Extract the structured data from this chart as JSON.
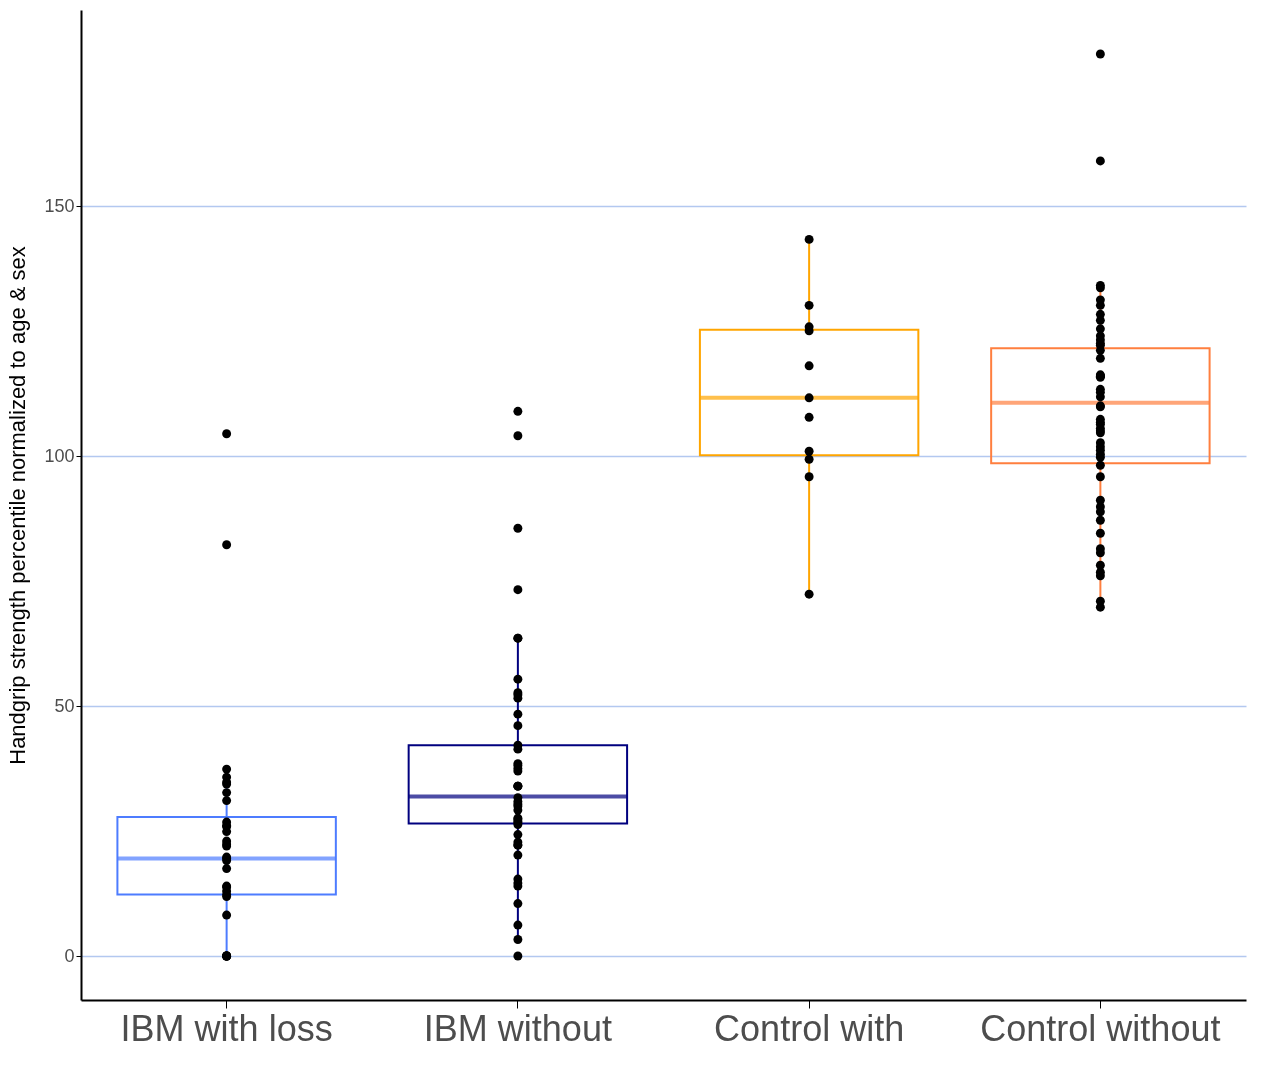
{
  "chart_data": {
    "type": "box",
    "ylabel": "Handgrip strength percentile normalized to age & sex",
    "categories": [
      "IBM with loss",
      "IBM without",
      "Control with",
      "Control without"
    ],
    "colors": [
      "#4d7cff",
      "#00007f",
      "#ffa500",
      "#ff7f3f"
    ],
    "boxes": [
      {
        "low": 0,
        "q1": 12.3,
        "median": 19.5,
        "q3": 27.8,
        "high": 36.8
      },
      {
        "low": 3.3,
        "q1": 26.5,
        "median": 31.9,
        "q3": 42.2,
        "high": 63.2
      },
      {
        "low": 72.6,
        "q1": 100.2,
        "median": 111.7,
        "q3": 125.3,
        "high": 143.4
      },
      {
        "low": 69.6,
        "q1": 98.6,
        "median": 110.7,
        "q3": 121.6,
        "high": 133.3
      }
    ],
    "ylim": [
      -8.8,
      189.3
    ],
    "yticks": [
      0,
      50,
      100,
      150
    ],
    "grid": "y",
    "legend": false,
    "series": [
      {
        "type": "scatter",
        "color": "#000000",
        "x": [
          "IBM with loss",
          "IBM with loss",
          "IBM with loss",
          "IBM with loss",
          "IBM with loss",
          "IBM with loss",
          "IBM with loss",
          "IBM with loss",
          "IBM with loss",
          "IBM with loss",
          "IBM with loss",
          "IBM with loss",
          "IBM with loss",
          "IBM with loss",
          "IBM with loss",
          "IBM with loss",
          "IBM with loss",
          "IBM with loss",
          "IBM with loss",
          "IBM with loss",
          "IBM with loss",
          "IBM with loss",
          "IBM with loss",
          "IBM with loss",
          "IBM with loss",
          "IBM with loss",
          "IBM with loss",
          "IBM with loss",
          "IBM with loss",
          "IBM with loss",
          "IBM without",
          "IBM without",
          "IBM without",
          "IBM without",
          "IBM without",
          "IBM without",
          "IBM without",
          "IBM without",
          "IBM without",
          "IBM without",
          "IBM without",
          "IBM without",
          "IBM without",
          "IBM without",
          "IBM without",
          "IBM without",
          "IBM without",
          "IBM without",
          "IBM without",
          "IBM without",
          "IBM without",
          "IBM without",
          "IBM without",
          "IBM without",
          "IBM without",
          "IBM without",
          "IBM without",
          "IBM without",
          "IBM without",
          "IBM without",
          "IBM without",
          "IBM without",
          "IBM without",
          "IBM without",
          "IBM without",
          "IBM without",
          "IBM without",
          "IBM without",
          "IBM without",
          "IBM without",
          "IBM without",
          "IBM without",
          "IBM without",
          "Control with",
          "Control with",
          "Control with",
          "Control with",
          "Control with",
          "Control with",
          "Control with",
          "Control with",
          "Control with",
          "Control with",
          "Control with",
          "Control without",
          "Control without",
          "Control without",
          "Control without",
          "Control without",
          "Control without",
          "Control without",
          "Control without",
          "Control without",
          "Control without",
          "Control without",
          "Control without",
          "Control without",
          "Control without",
          "Control without",
          "Control without",
          "Control without",
          "Control without",
          "Control without",
          "Control without",
          "Control without",
          "Control without",
          "Control without",
          "Control without",
          "Control without",
          "Control without",
          "Control without",
          "Control without",
          "Control without",
          "Control without",
          "Control without",
          "Control without",
          "Control without",
          "Control without",
          "Control without",
          "Control without",
          "Control without",
          "Control without",
          "Control without",
          "Control without",
          "Control without",
          "Control without",
          "Control without",
          "Control without",
          "Control without",
          "Control without",
          "Control without",
          "Control without",
          "Control without"
        ],
        "values": [
          104.5,
          82.3,
          37.4,
          35.8,
          34.8,
          34.4,
          32.7,
          31.1,
          26.8,
          26.1,
          25.9,
          24.9,
          23.0,
          22.4,
          22.0,
          19.8,
          19.5,
          19.1,
          17.5,
          14.0,
          13.8,
          13.0,
          12.3,
          11.9,
          8.2,
          0,
          0,
          0,
          0,
          0,
          109,
          104.1,
          85.6,
          73.3,
          63.6,
          63.6,
          55.4,
          52.7,
          52.3,
          51.6,
          48.4,
          46.1,
          42.2,
          41.4,
          38.5,
          38.1,
          37.5,
          37.0,
          34.0,
          34.0,
          34.0,
          31.7,
          30.9,
          30.4,
          30.0,
          29.2,
          27.6,
          27.4,
          27.0,
          26.7,
          26.3,
          24.3,
          22.8,
          22.2,
          22.2,
          20.2,
          15.4,
          14.6,
          14.0,
          10.5,
          6.2,
          3.3,
          0,
          143.4,
          130.2,
          125.9,
          125.1,
          118.1,
          111.7,
          107.8,
          101.0,
          99.4,
          95.9,
          72.4,
          180.5,
          159.1,
          134.2,
          133.7,
          131.3,
          130.2,
          128.4,
          127.2,
          125.5,
          124.1,
          123.3,
          122.6,
          122.2,
          121.2,
          119.6,
          116.3,
          116.1,
          116.0,
          115.8,
          113.4,
          112.8,
          111.9,
          110.1,
          109.9,
          107.4,
          106.8,
          106.4,
          105.6,
          105.1,
          104.7,
          102.7,
          101.9,
          101.2,
          100.4,
          99.8,
          98.2,
          95.9,
          91.2,
          89.9,
          88.9,
          87.2,
          84.6,
          81.5,
          80.7,
          78.2,
          76.8,
          76.1,
          71.0,
          69.8
        ]
      }
    ]
  }
}
